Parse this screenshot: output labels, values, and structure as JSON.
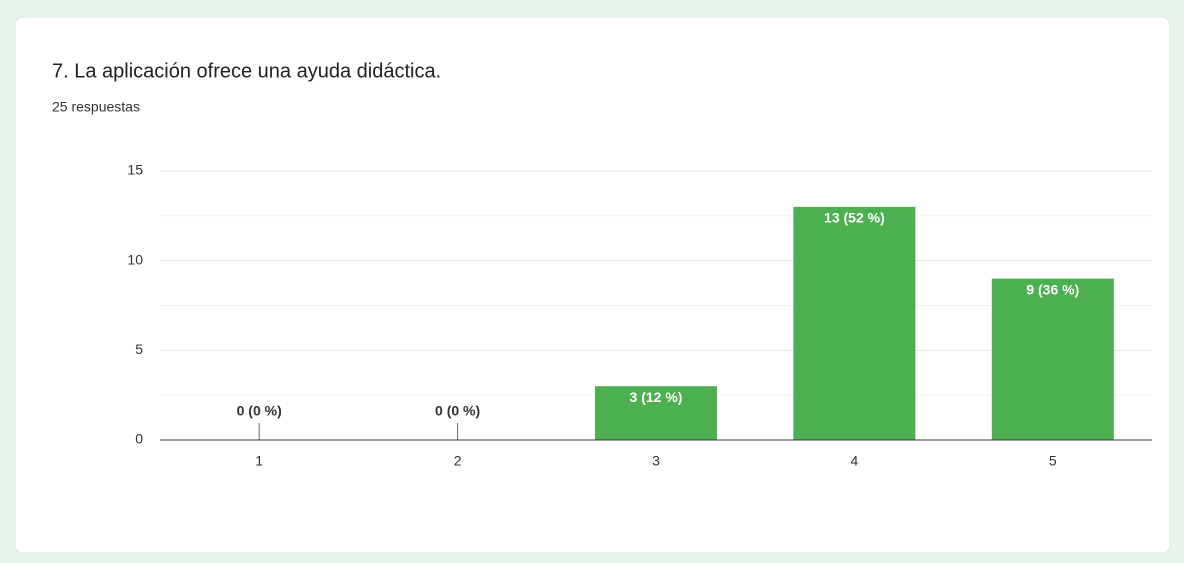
{
  "chart_data": {
    "type": "bar",
    "title": "7. La aplicación ofrece una ayuda didáctica.",
    "subtitle": "25 respuestas",
    "categories": [
      "1",
      "2",
      "3",
      "4",
      "5"
    ],
    "values": [
      0,
      0,
      3,
      13,
      9
    ],
    "value_labels": [
      "0 (0 %)",
      "0 (0 %)",
      "3 (12 %)",
      "13 (52 %)",
      "9 (36 %)"
    ],
    "color": "#4caf50",
    "ylim": [
      0,
      15
    ],
    "yticks": [
      0,
      5,
      10,
      15
    ],
    "grid": true
  }
}
